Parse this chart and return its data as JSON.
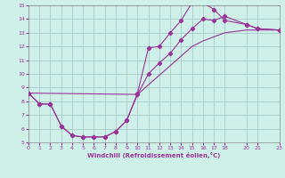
{
  "xlabel": "Windchill (Refroidissement éolien,°C)",
  "bg_color": "#cef0e8",
  "grid_color": "#aacccc",
  "line_color": "#993399",
  "xlim": [
    0,
    23
  ],
  "ylim": [
    5,
    15
  ],
  "xticks": [
    0,
    1,
    2,
    3,
    4,
    5,
    6,
    7,
    8,
    9,
    10,
    11,
    12,
    13,
    14,
    15,
    16,
    17,
    18,
    20,
    21,
    23
  ],
  "yticks": [
    5,
    6,
    7,
    8,
    9,
    10,
    11,
    12,
    13,
    14,
    15
  ],
  "curve1_x": [
    0,
    1,
    2,
    3,
    4,
    5,
    6,
    7,
    8,
    9,
    10,
    11,
    12,
    13,
    14,
    15,
    15,
    16,
    17,
    18,
    20,
    21,
    23
  ],
  "curve1_y": [
    8.6,
    7.8,
    7.8,
    6.2,
    5.5,
    5.4,
    5.4,
    5.4,
    5.8,
    6.6,
    8.6,
    11.9,
    12.0,
    13.0,
    13.9,
    15.2,
    15.2,
    15.2,
    14.7,
    13.9,
    13.6,
    13.3,
    13.2
  ],
  "curve2_x": [
    0,
    1,
    2,
    3,
    4,
    5,
    6,
    7,
    8,
    9,
    10,
    11,
    12,
    13,
    14,
    15,
    16,
    17,
    18,
    20,
    21,
    23
  ],
  "curve2_y": [
    8.6,
    7.8,
    7.8,
    6.2,
    5.5,
    5.4,
    5.4,
    5.4,
    5.8,
    6.6,
    8.5,
    10.0,
    10.8,
    11.5,
    12.5,
    13.3,
    14.0,
    13.9,
    14.2,
    13.6,
    13.3,
    13.2
  ],
  "curve3_x": [
    0,
    10,
    11,
    12,
    13,
    14,
    15,
    16,
    17,
    18,
    20,
    21,
    23
  ],
  "curve3_y": [
    8.6,
    8.5,
    9.2,
    9.9,
    10.6,
    11.3,
    12.0,
    12.4,
    12.7,
    13.0,
    13.2,
    13.2,
    13.2
  ]
}
